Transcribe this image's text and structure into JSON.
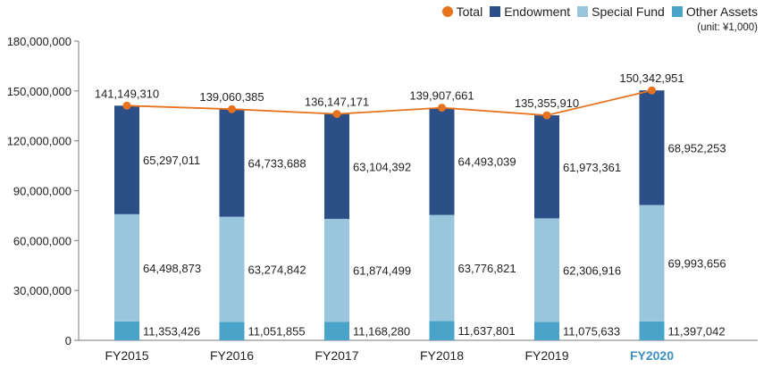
{
  "chart_data": {
    "type": "bar",
    "stacked": true,
    "categories": [
      "FY2015",
      "FY2016",
      "FY2017",
      "FY2018",
      "FY2019",
      "FY2020"
    ],
    "highlighted_category": "FY2020",
    "unit_note": "(unit: ¥1,000)",
    "ylim": [
      0,
      180000000
    ],
    "yticks": [
      "0",
      "30,000,000",
      "60,000,000",
      "90,000,000",
      "120,000,000",
      "150,000,000",
      "180,000,000"
    ],
    "series": [
      {
        "name": "Other Assets",
        "key": "other",
        "color": "#4aa3c8",
        "values": [
          11353426,
          11051855,
          11168280,
          11637801,
          11075633,
          11397042
        ],
        "labels": [
          "11,353,426",
          "11,051,855",
          "11,168,280",
          "11,637,801",
          "11,075,633",
          "11,397,042"
        ]
      },
      {
        "name": "Special Fund",
        "key": "special",
        "color": "#99c6dd",
        "values": [
          64498873,
          63274842,
          61874499,
          63776821,
          62306916,
          69993656
        ],
        "labels": [
          "64,498,873",
          "63,274,842",
          "61,874,499",
          "63,776,821",
          "62,306,916",
          "69,993,656"
        ]
      },
      {
        "name": "Endowment",
        "key": "endowment",
        "color": "#2b4f86",
        "values": [
          65297011,
          64733688,
          63104392,
          64493039,
          61973361,
          68952253
        ],
        "labels": [
          "65,297,011",
          "64,733,688",
          "63,104,392",
          "64,493,039",
          "61,973,361",
          "68,952,253"
        ]
      }
    ],
    "total": {
      "name": "Total",
      "color": "#e8731f",
      "values": [
        141149310,
        139060385,
        136147171,
        139907661,
        135355910,
        150342951
      ],
      "labels": [
        "141,149,310",
        "139,060,385",
        "136,147,171",
        "139,907,661",
        "135,355,910",
        "150,342,951"
      ]
    },
    "legend": {
      "position": "top-right",
      "items": [
        {
          "label": "Total",
          "color": "#e8731f",
          "shape": "dot"
        },
        {
          "label": "Endowment",
          "color": "#2b4f86",
          "shape": "square"
        },
        {
          "label": "Special Fund",
          "color": "#99c6dd",
          "shape": "square"
        },
        {
          "label": "Other Assets",
          "color": "#4aa3c8",
          "shape": "square"
        }
      ]
    },
    "colors": {
      "axis_text": "#222222",
      "highlight_text": "#3d8fc4",
      "axis_line": "#777777"
    }
  }
}
